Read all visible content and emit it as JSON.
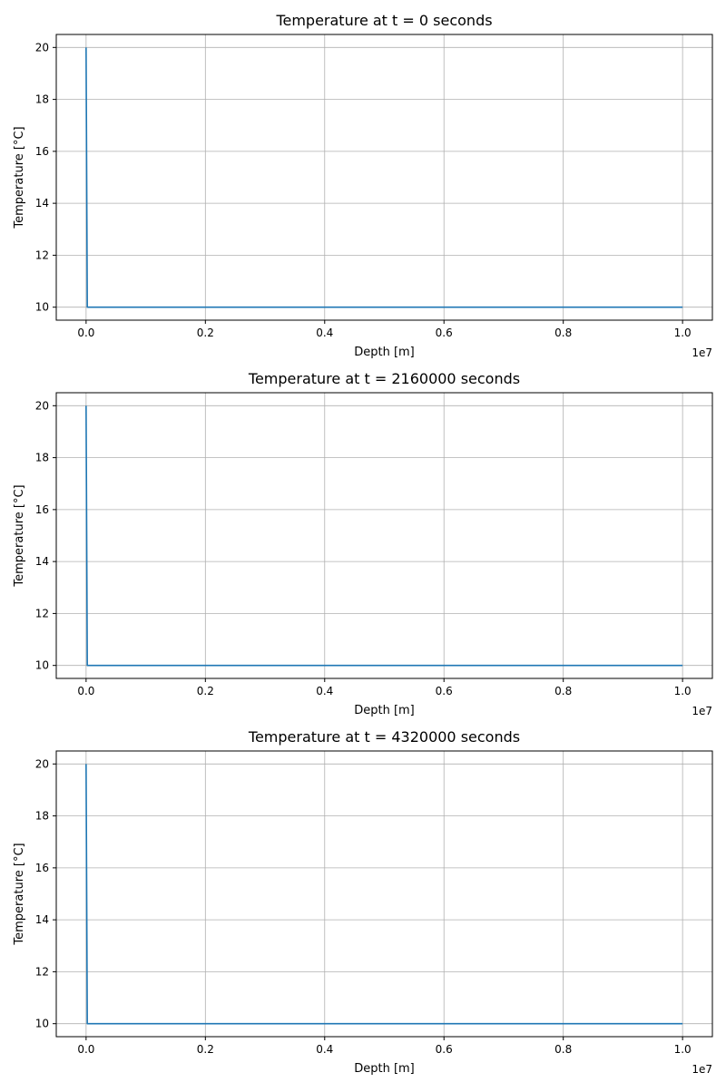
{
  "chart_data": [
    {
      "type": "line",
      "title": "Temperature at t = 0 seconds",
      "xlabel": "Depth [m]",
      "ylabel": "Temperature [°C]",
      "x_offset_label": "1e7",
      "xlim": [
        -500000,
        10500000
      ],
      "ylim": [
        9.5,
        20.5
      ],
      "xticks": [
        0,
        2000000,
        4000000,
        6000000,
        8000000,
        10000000
      ],
      "xtick_labels": [
        "0.0",
        "0.2",
        "0.4",
        "0.6",
        "0.8",
        "1.0"
      ],
      "yticks": [
        10,
        12,
        14,
        16,
        18,
        20
      ],
      "ytick_labels": [
        "10",
        "12",
        "14",
        "16",
        "18",
        "20"
      ],
      "grid": true,
      "series": [
        {
          "color": "#1f77b4",
          "x": [
            0,
            20000,
            10000000
          ],
          "y": [
            20,
            10,
            10
          ]
        }
      ]
    },
    {
      "type": "line",
      "title": "Temperature at t = 2160000 seconds",
      "xlabel": "Depth [m]",
      "ylabel": "Temperature [°C]",
      "x_offset_label": "1e7",
      "xlim": [
        -500000,
        10500000
      ],
      "ylim": [
        9.5,
        20.5
      ],
      "xticks": [
        0,
        2000000,
        4000000,
        6000000,
        8000000,
        10000000
      ],
      "xtick_labels": [
        "0.0",
        "0.2",
        "0.4",
        "0.6",
        "0.8",
        "1.0"
      ],
      "yticks": [
        10,
        12,
        14,
        16,
        18,
        20
      ],
      "ytick_labels": [
        "10",
        "12",
        "14",
        "16",
        "18",
        "20"
      ],
      "grid": true,
      "series": [
        {
          "color": "#1f77b4",
          "x": [
            0,
            20000,
            10000000
          ],
          "y": [
            20,
            10,
            10
          ]
        }
      ]
    },
    {
      "type": "line",
      "title": "Temperature at t = 4320000 seconds",
      "xlabel": "Depth [m]",
      "ylabel": "Temperature [°C]",
      "x_offset_label": "1e7",
      "xlim": [
        -500000,
        10500000
      ],
      "ylim": [
        9.5,
        20.5
      ],
      "xticks": [
        0,
        2000000,
        4000000,
        6000000,
        8000000,
        10000000
      ],
      "xtick_labels": [
        "0.0",
        "0.2",
        "0.4",
        "0.6",
        "0.8",
        "1.0"
      ],
      "yticks": [
        10,
        12,
        14,
        16,
        18,
        20
      ],
      "ytick_labels": [
        "10",
        "12",
        "14",
        "16",
        "18",
        "20"
      ],
      "grid": true,
      "series": [
        {
          "color": "#1f77b4",
          "x": [
            0,
            20000,
            10000000
          ],
          "y": [
            20,
            10,
            10
          ]
        }
      ]
    }
  ]
}
